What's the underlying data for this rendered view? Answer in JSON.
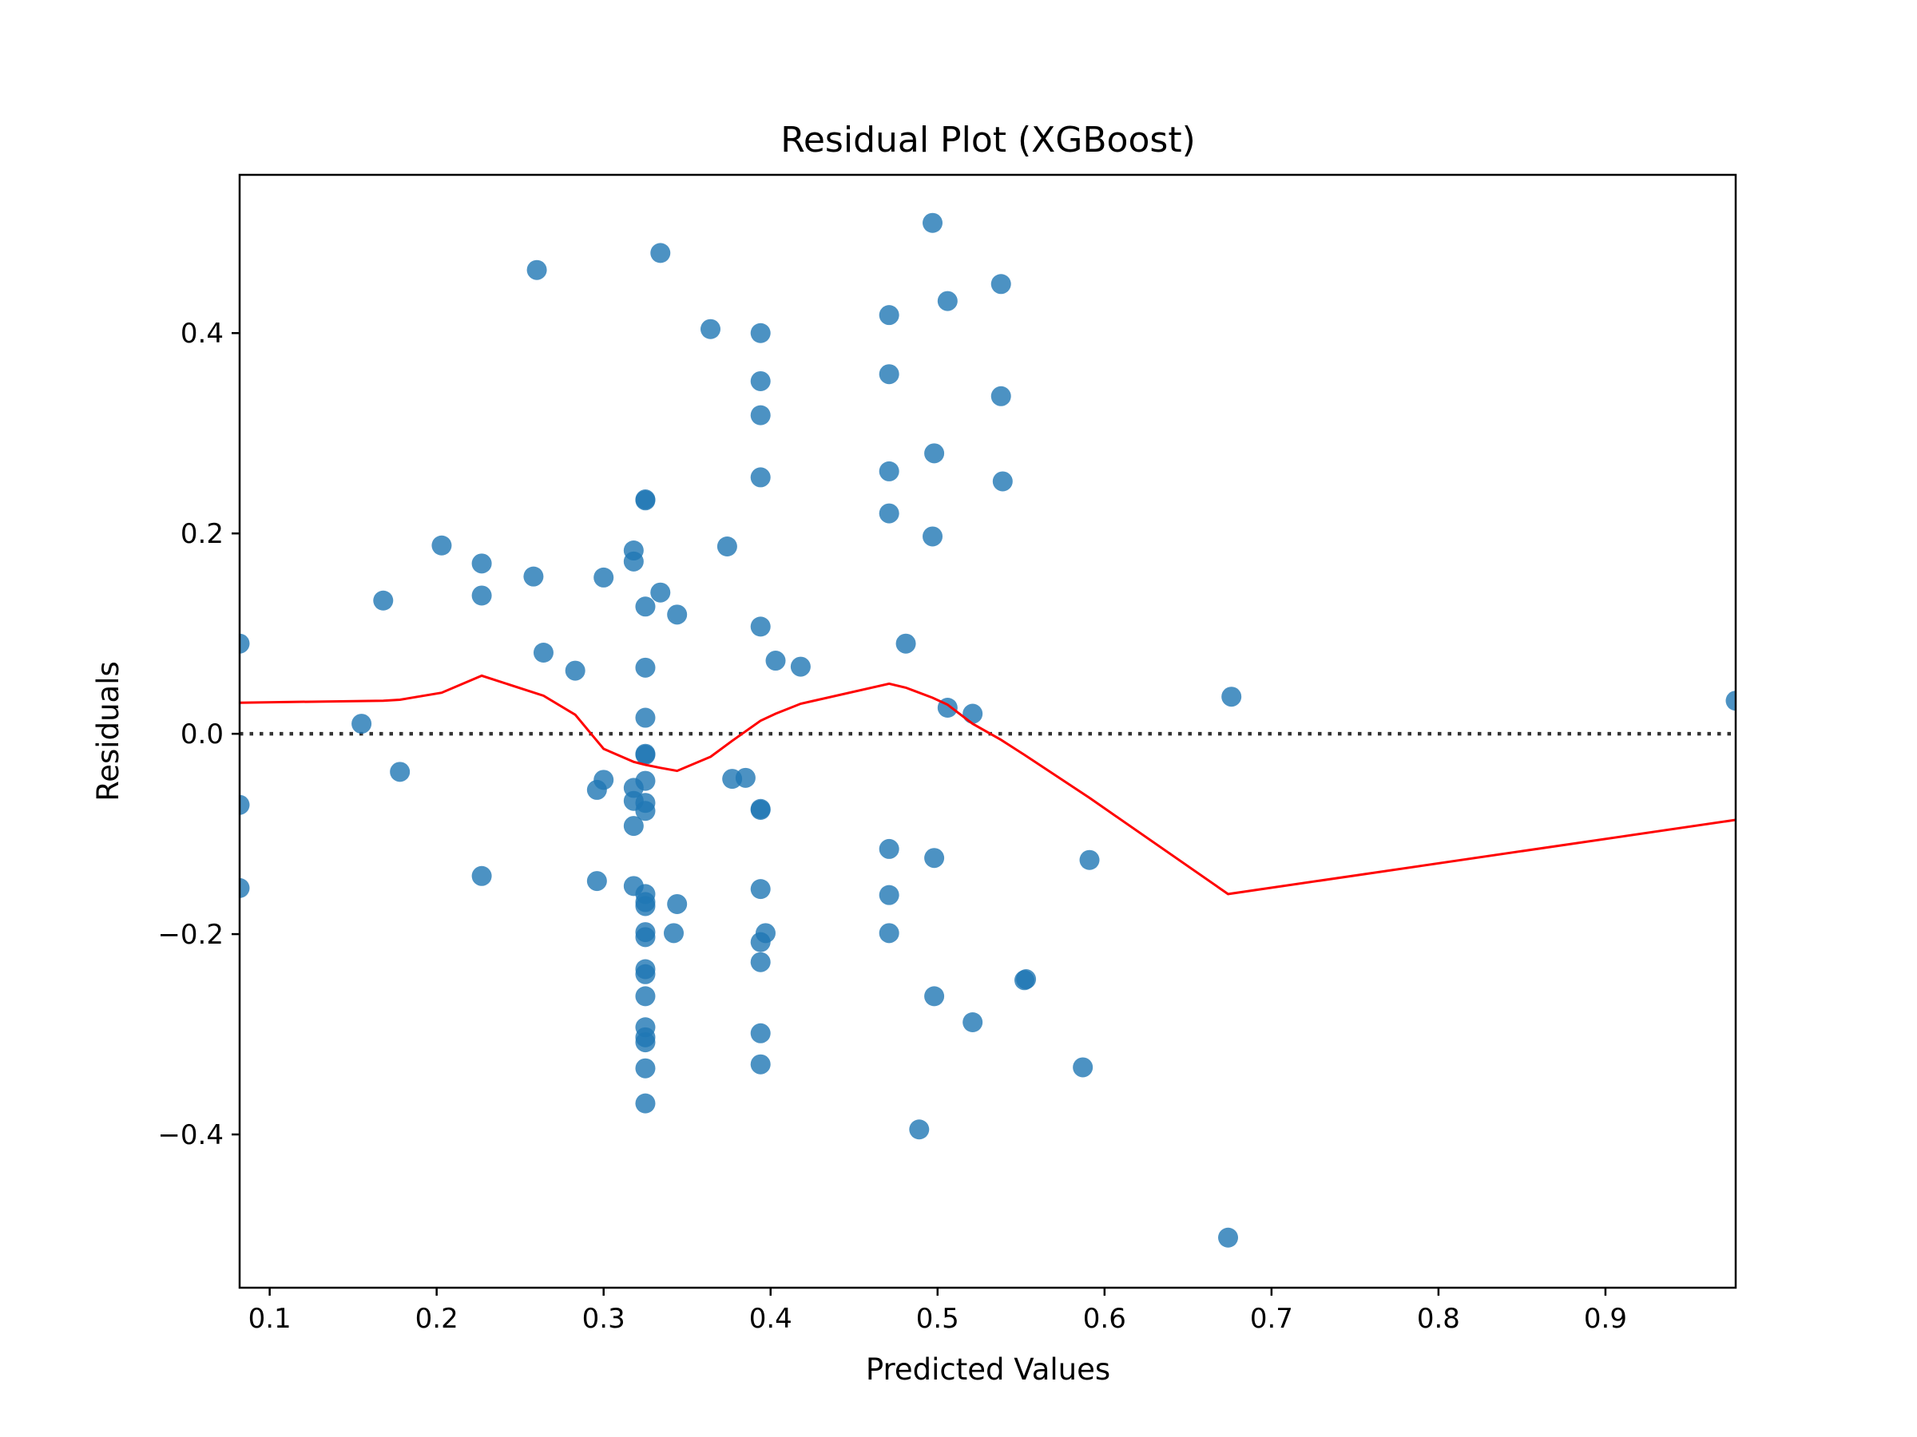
{
  "chart_data": {
    "type": "scatter",
    "title": "Residual Plot (XGBoost)",
    "xlabel": "Predicted Values",
    "ylabel": "Residuals",
    "xlim": [
      0.082,
      0.978
    ],
    "ylim": [
      -0.553,
      0.558
    ],
    "x_ticks": [
      0.1,
      0.2,
      0.3,
      0.4,
      0.5,
      0.6,
      0.7,
      0.8,
      0.9
    ],
    "x_tick_labels": [
      "0.1",
      "0.2",
      "0.3",
      "0.4",
      "0.5",
      "0.6",
      "0.7",
      "0.8",
      "0.9"
    ],
    "y_ticks": [
      -0.4,
      -0.2,
      0.0,
      0.2,
      0.4
    ],
    "y_tick_labels": [
      "−0.4",
      "−0.2",
      "0.0",
      "0.2",
      "0.4"
    ],
    "grid": false,
    "legend": "none",
    "colors": {
      "points": "#1f77b4",
      "lowess": "#ff0000",
      "zero_line": "#333333"
    },
    "points": [
      [
        0.082,
        0.09
      ],
      [
        0.082,
        -0.071
      ],
      [
        0.082,
        -0.154
      ],
      [
        0.155,
        0.01
      ],
      [
        0.168,
        0.133
      ],
      [
        0.178,
        -0.038
      ],
      [
        0.203,
        0.188
      ],
      [
        0.227,
        0.17
      ],
      [
        0.227,
        0.138
      ],
      [
        0.227,
        -0.142
      ],
      [
        0.258,
        0.157
      ],
      [
        0.26,
        0.463
      ],
      [
        0.264,
        0.081
      ],
      [
        0.283,
        0.063
      ],
      [
        0.296,
        -0.056
      ],
      [
        0.296,
        -0.147
      ],
      [
        0.3,
        0.156
      ],
      [
        0.3,
        -0.046
      ],
      [
        0.318,
        0.183
      ],
      [
        0.318,
        0.172
      ],
      [
        0.318,
        -0.054
      ],
      [
        0.318,
        -0.067
      ],
      [
        0.318,
        -0.092
      ],
      [
        0.318,
        -0.152
      ],
      [
        0.325,
        0.234
      ],
      [
        0.325,
        0.233
      ],
      [
        0.325,
        0.127
      ],
      [
        0.325,
        0.066
      ],
      [
        0.325,
        0.016
      ],
      [
        0.325,
        -0.02
      ],
      [
        0.325,
        -0.021
      ],
      [
        0.325,
        -0.047
      ],
      [
        0.325,
        -0.069
      ],
      [
        0.325,
        -0.077
      ],
      [
        0.325,
        -0.16
      ],
      [
        0.325,
        -0.168
      ],
      [
        0.325,
        -0.172
      ],
      [
        0.325,
        -0.198
      ],
      [
        0.325,
        -0.203
      ],
      [
        0.325,
        -0.235
      ],
      [
        0.325,
        -0.24
      ],
      [
        0.325,
        -0.262
      ],
      [
        0.325,
        -0.293
      ],
      [
        0.325,
        -0.303
      ],
      [
        0.325,
        -0.308
      ],
      [
        0.325,
        -0.334
      ],
      [
        0.325,
        -0.369
      ],
      [
        0.334,
        0.48
      ],
      [
        0.334,
        0.141
      ],
      [
        0.342,
        -0.199
      ],
      [
        0.344,
        0.119
      ],
      [
        0.344,
        -0.17
      ],
      [
        0.364,
        0.404
      ],
      [
        0.374,
        0.187
      ],
      [
        0.377,
        -0.045
      ],
      [
        0.385,
        -0.044
      ],
      [
        0.394,
        0.4
      ],
      [
        0.394,
        0.352
      ],
      [
        0.394,
        0.318
      ],
      [
        0.394,
        0.256
      ],
      [
        0.394,
        0.107
      ],
      [
        0.394,
        -0.075
      ],
      [
        0.394,
        -0.076
      ],
      [
        0.394,
        -0.155
      ],
      [
        0.394,
        -0.208
      ],
      [
        0.394,
        -0.228
      ],
      [
        0.394,
        -0.299
      ],
      [
        0.394,
        -0.33
      ],
      [
        0.397,
        -0.199
      ],
      [
        0.403,
        0.073
      ],
      [
        0.418,
        0.067
      ],
      [
        0.471,
        0.418
      ],
      [
        0.471,
        0.359
      ],
      [
        0.471,
        0.262
      ],
      [
        0.471,
        0.22
      ],
      [
        0.471,
        -0.115
      ],
      [
        0.471,
        -0.161
      ],
      [
        0.471,
        -0.199
      ],
      [
        0.481,
        0.09
      ],
      [
        0.489,
        -0.395
      ],
      [
        0.497,
        0.51
      ],
      [
        0.497,
        0.197
      ],
      [
        0.498,
        0.28
      ],
      [
        0.498,
        -0.124
      ],
      [
        0.498,
        -0.262
      ],
      [
        0.506,
        0.432
      ],
      [
        0.506,
        0.026
      ],
      [
        0.521,
        0.02
      ],
      [
        0.521,
        -0.288
      ],
      [
        0.538,
        0.449
      ],
      [
        0.538,
        0.337
      ],
      [
        0.539,
        0.252
      ],
      [
        0.552,
        -0.246
      ],
      [
        0.553,
        -0.245
      ],
      [
        0.587,
        -0.333
      ],
      [
        0.591,
        -0.126
      ],
      [
        0.674,
        -0.503
      ],
      [
        0.676,
        0.037
      ],
      [
        0.978,
        0.033
      ]
    ],
    "lowess": [
      [
        0.082,
        0.031
      ],
      [
        0.168,
        0.033
      ],
      [
        0.178,
        0.034
      ],
      [
        0.203,
        0.041
      ],
      [
        0.227,
        0.058
      ],
      [
        0.264,
        0.038
      ],
      [
        0.283,
        0.019
      ],
      [
        0.296,
        -0.007
      ],
      [
        0.3,
        -0.015
      ],
      [
        0.318,
        -0.028
      ],
      [
        0.325,
        -0.031
      ],
      [
        0.334,
        -0.034
      ],
      [
        0.344,
        -0.037
      ],
      [
        0.364,
        -0.023
      ],
      [
        0.377,
        -0.007
      ],
      [
        0.394,
        0.013
      ],
      [
        0.403,
        0.02
      ],
      [
        0.418,
        0.03
      ],
      [
        0.471,
        0.05
      ],
      [
        0.481,
        0.046
      ],
      [
        0.497,
        0.036
      ],
      [
        0.506,
        0.029
      ],
      [
        0.521,
        0.01
      ],
      [
        0.538,
        -0.006
      ],
      [
        0.552,
        -0.021
      ],
      [
        0.591,
        -0.064
      ],
      [
        0.674,
        -0.16
      ],
      [
        0.978,
        -0.086
      ]
    ]
  }
}
